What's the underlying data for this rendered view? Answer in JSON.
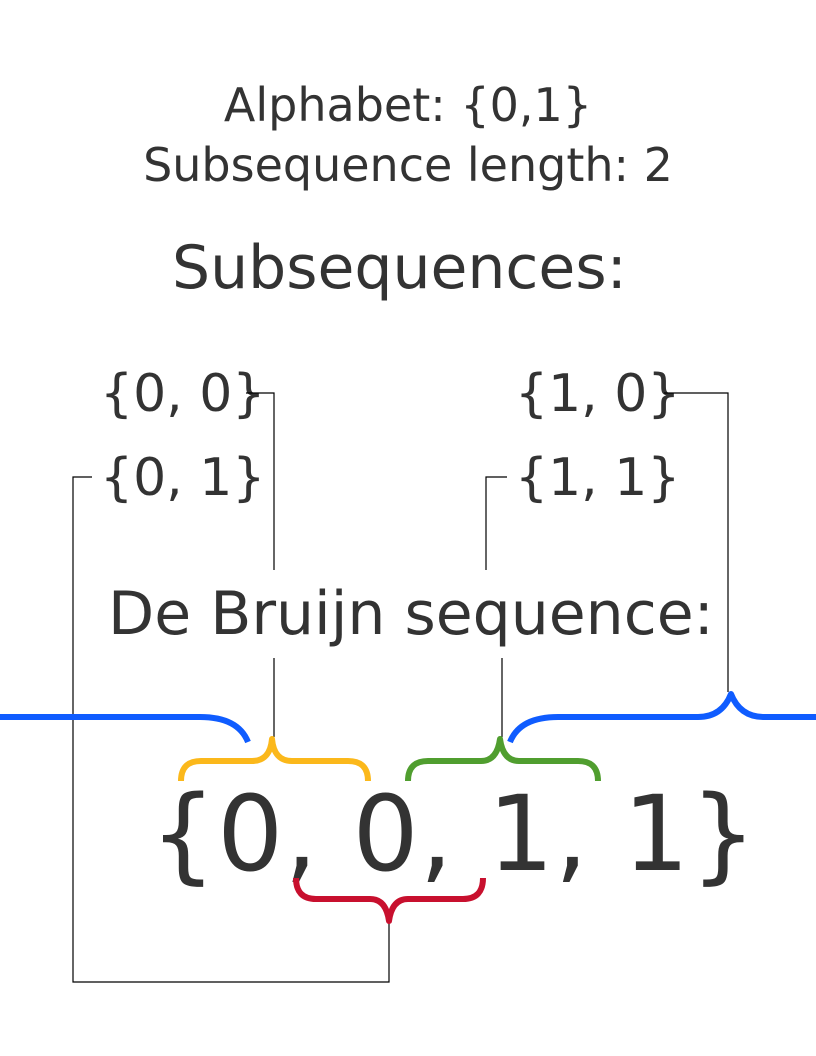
{
  "header": {
    "alphabet": "Alphabet: {0,1}",
    "subsequence_length": "Subsequence length: 2"
  },
  "subsequences_heading": "Subsequences:",
  "subsequences": [
    {
      "label": "{0, 0}",
      "brace_color": "#FBB81B"
    },
    {
      "label": "{0, 1}",
      "brace_color": "#C8102E"
    },
    {
      "label": "{1, 0}",
      "brace_color": "#0F5CFF"
    },
    {
      "label": "{1, 1}",
      "brace_color": "#509E2F"
    }
  ],
  "de_bruijn_heading": "De Bruijn sequence:",
  "sequence": "{0, 0, 1, 1}",
  "colors": {
    "text": "#333333",
    "connector": "#000000"
  }
}
